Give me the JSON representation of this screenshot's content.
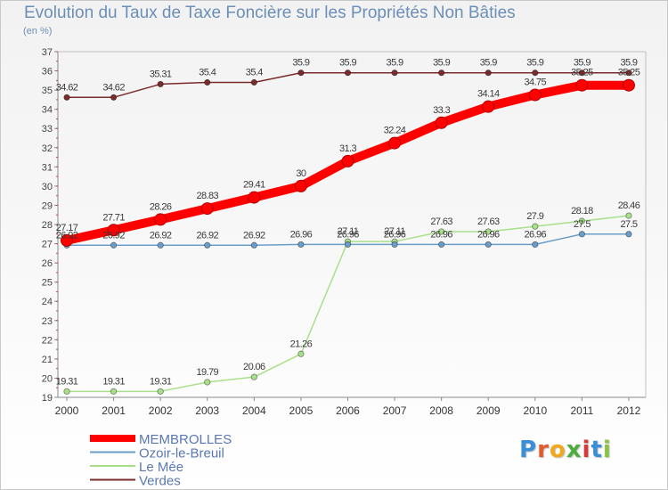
{
  "title": "Evolution du Taux de Taxe Foncière sur les Propriétés Non Bâties",
  "unit_label": "(en %)",
  "logo": {
    "text": "Proxiti",
    "letters": [
      "P",
      "r",
      "o",
      "x",
      "i",
      "t",
      "i"
    ],
    "colors": [
      "#3a8fd6",
      "#e55a2b",
      "#f2a81d",
      "#4cae3c",
      "#d63a3a",
      "#3a8fd6",
      "#8bc43f"
    ]
  },
  "chart_data": {
    "type": "line",
    "title": "Evolution du Taux de Taxe Foncière sur les Propriétés Non Bâties",
    "ylabel": "(en %)",
    "xlabel": "",
    "x": [
      "2000",
      "2001",
      "2002",
      "2003",
      "2004",
      "2005",
      "2006",
      "2007",
      "2008",
      "2009",
      "2010",
      "2011",
      "2012"
    ],
    "ylim": [
      19,
      37
    ],
    "yticks": [
      "19",
      "20",
      "21",
      "22",
      "23",
      "24",
      "25",
      "26",
      "27",
      "28",
      "29",
      "30",
      "31",
      "32",
      "33",
      "34",
      "35",
      "36",
      "37"
    ],
    "grid": false,
    "legend_position": "bottom-left",
    "series": [
      {
        "name": "Verdes",
        "color": "#7a2c2c",
        "values": [
          34.62,
          34.62,
          35.31,
          35.4,
          35.4,
          35.9,
          35.9,
          35.9,
          35.9,
          35.9,
          35.9,
          35.9,
          35.9
        ],
        "labels": [
          "34.62",
          "34.62",
          "35.31",
          "35.4",
          "35.4",
          "35.9",
          "35.9",
          "35.9",
          "35.9",
          "35.9",
          "35.9",
          "35.9",
          "35.9"
        ]
      },
      {
        "name": "Le Mée",
        "color": "#a8e08a",
        "values": [
          19.31,
          19.31,
          19.31,
          19.79,
          20.06,
          21.26,
          27.11,
          27.11,
          27.63,
          27.63,
          27.9,
          28.18,
          28.46
        ],
        "labels": [
          "19.31",
          "19.31",
          "19.31",
          "19.79",
          "20.06",
          "21.26",
          "27.11",
          "27.11",
          "27.63",
          "27.63",
          "27.9",
          "28.18",
          "28.46"
        ]
      },
      {
        "name": "Ozoir-le-Breuil",
        "color": "#6a9ec9",
        "values": [
          26.92,
          26.92,
          26.92,
          26.92,
          26.92,
          26.96,
          26.96,
          26.96,
          26.96,
          26.96,
          26.96,
          27.5,
          27.5
        ],
        "labels": [
          "26.92",
          "26.92",
          "26.92",
          "26.92",
          "26.92",
          "26.96",
          "26.96",
          "26.96",
          "26.96",
          "26.96",
          "26.96",
          "27.5",
          "27.5"
        ]
      },
      {
        "name": "MEMBROLLES",
        "color": "#ff0000",
        "values": [
          27.17,
          27.71,
          28.26,
          28.83,
          29.41,
          30,
          31.3,
          32.24,
          33.3,
          34.14,
          34.75,
          35.25,
          35.25
        ],
        "labels": [
          "27.17",
          "27.71",
          "28.26",
          "28.83",
          "29.41",
          "30",
          "31.3",
          "32.24",
          "33.3",
          "34.14",
          "34.75",
          "35.25",
          "35.25"
        ]
      }
    ],
    "legend": [
      {
        "name": "MEMBROLLES",
        "color": "#ff0000",
        "thick": true
      },
      {
        "name": "Ozoir-le-Breuil",
        "color": "#6a9ec9",
        "thick": false
      },
      {
        "name": "Le Mée",
        "color": "#a8e08a",
        "thick": false
      },
      {
        "name": "Verdes",
        "color": "#7a2c2c",
        "thick": false
      }
    ]
  }
}
